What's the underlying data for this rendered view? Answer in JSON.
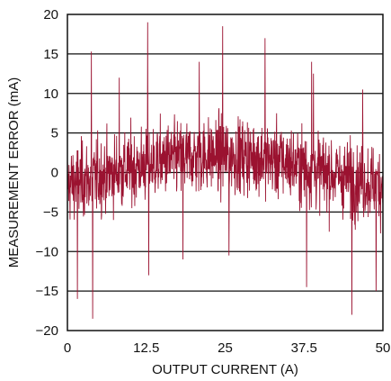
{
  "chart_data": {
    "type": "line",
    "title": "",
    "xlabel": "OUTPUT CURRENT (A)",
    "ylabel": "MEASUREMENT ERROR (mA)",
    "xlim": [
      0,
      50
    ],
    "ylim": [
      -20,
      20
    ],
    "x_ticks": [
      0,
      12.5,
      25,
      37.5,
      50
    ],
    "x_tick_labels": [
      "0",
      "12.5",
      "25",
      "37.5",
      "50"
    ],
    "y_ticks": [
      20,
      15,
      10,
      5,
      0,
      -5,
      -10,
      -15,
      -20
    ],
    "y_tick_labels": [
      "20",
      "15",
      "10",
      "5",
      "0",
      "−5",
      "−10",
      "−15",
      "−20"
    ],
    "grid": "horizontal",
    "legend": "none",
    "series": [
      {
        "color": "#9b1230",
        "x_start": 0,
        "x_end": 50,
        "sample_count": 1200,
        "envelope_x": [
          0,
          5,
          10,
          15,
          20,
          25,
          30,
          35,
          40,
          45,
          50
        ],
        "envelope_mean": [
          -1.5,
          -0.5,
          0.5,
          1.5,
          2.0,
          2.2,
          2.0,
          1.2,
          0.2,
          -0.8,
          -1.5
        ],
        "envelope_spread": [
          6,
          6,
          6,
          6,
          6,
          6,
          6,
          6,
          6,
          6,
          6
        ],
        "peaks": [
          {
            "x": 12.7,
            "y": 19
          },
          {
            "x": 24.6,
            "y": 18.5
          },
          {
            "x": 31.3,
            "y": 17
          },
          {
            "x": 38.7,
            "y": 14
          },
          {
            "x": 39.0,
            "y": 12.5
          },
          {
            "x": 3.8,
            "y": 15.3
          },
          {
            "x": 8.2,
            "y": 12
          },
          {
            "x": 20.9,
            "y": 14
          },
          {
            "x": 46.8,
            "y": 10.5
          },
          {
            "x": 1.6,
            "y": -16
          },
          {
            "x": 4.0,
            "y": -18.5
          },
          {
            "x": 12.9,
            "y": -13
          },
          {
            "x": 18.3,
            "y": -11
          },
          {
            "x": 25.6,
            "y": -10.5
          },
          {
            "x": 37.9,
            "y": -14.5
          },
          {
            "x": 45.1,
            "y": -18
          },
          {
            "x": 48.9,
            "y": -15
          }
        ]
      }
    ]
  }
}
